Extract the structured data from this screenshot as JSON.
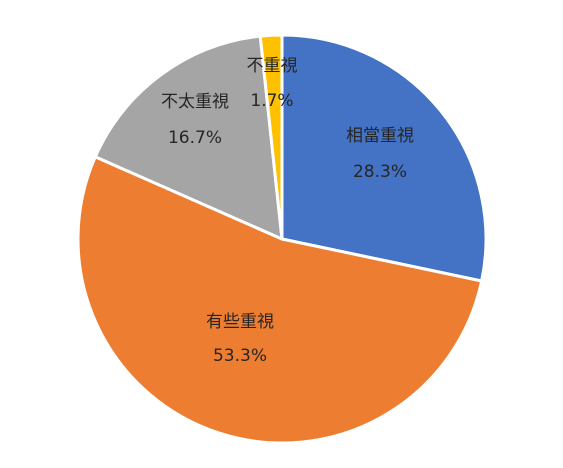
{
  "chart_data": {
    "type": "pie",
    "categories": [
      "相當重視",
      "有些重視",
      "不太重視",
      "不重視"
    ],
    "values": [
      28.3,
      53.3,
      16.7,
      1.7
    ],
    "value_labels": [
      "28.3%",
      "53.3%",
      "16.7%",
      "1.7%"
    ],
    "colors": [
      "#4472c4",
      "#ed7d31",
      "#a5a5a5",
      "#ffc000"
    ]
  }
}
